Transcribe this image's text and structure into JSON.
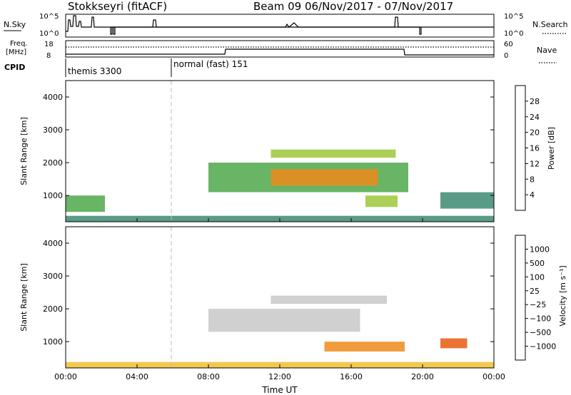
{
  "header": {
    "station": "Stokkseyri (fitACF)",
    "beam_date": "Beam 09  06/Nov/2017 - 07/Nov/2017"
  },
  "noise_panel": {
    "left_label": "N.Sky",
    "right_label": "N.Search",
    "left_ticks": [
      "10^5",
      "10^0"
    ],
    "right_ticks": [
      "10^5",
      "10^0"
    ]
  },
  "freq_panel": {
    "left_label_top": "Freq.",
    "left_label_bottom": "[MHz]",
    "right_label": "Nave",
    "left_ticks": [
      "18",
      "8"
    ],
    "right_ticks": [
      "60",
      "0"
    ]
  },
  "cpid_panel": {
    "label": "CPID",
    "segments": [
      {
        "text": "themis 3300",
        "start_hour": 0
      },
      {
        "text": "normal (fast) 151",
        "start_hour": 6
      }
    ]
  },
  "x_axis": {
    "label": "Time UT",
    "ticks": [
      "00:00",
      "04:00",
      "08:00",
      "12:00",
      "16:00",
      "20:00",
      "00:00"
    ]
  },
  "colors": {
    "power_scale": [
      "#1f23e6",
      "#2f5bb2",
      "#3d8a72",
      "#4da84a",
      "#9cc73a",
      "#f0c21a",
      "#f08a1a",
      "#e04a1a",
      "#e31010"
    ],
    "velocity_scale": [
      "#1f3fd6",
      "#3a6fbf",
      "#2f8a5a",
      "#4fbf3a",
      "#c8c8c8",
      "#f0c030",
      "#f08a1a",
      "#e85a10",
      "#e01010"
    ],
    "ground_scatter": "#c4c4c4"
  },
  "chart_data": [
    {
      "type": "heatmap",
      "name": "power",
      "xlabel": "Time UT",
      "ylabel": "Slant Range [km]",
      "xlim": [
        0,
        24
      ],
      "ylim": [
        200,
        4500
      ],
      "yticks": [
        1000,
        2000,
        3000,
        4000
      ],
      "colorbar": {
        "label": "Power [dB]",
        "ticks": [
          4,
          8,
          12,
          16,
          20,
          24,
          28
        ],
        "range": [
          0,
          32
        ]
      },
      "regions": [
        {
          "t0": 0.0,
          "t1": 24.0,
          "r0": 200,
          "r1": 380,
          "value": 8
        },
        {
          "t0": 0.0,
          "t1": 2.2,
          "r0": 500,
          "r1": 1000,
          "value": 12
        },
        {
          "t0": 8.0,
          "t1": 19.2,
          "r0": 1100,
          "r1": 2000,
          "value": 12
        },
        {
          "t0": 11.5,
          "t1": 17.5,
          "r0": 1300,
          "r1": 1800,
          "value": 22
        },
        {
          "t0": 11.5,
          "t1": 18.5,
          "r0": 2150,
          "r1": 2400,
          "value": 16
        },
        {
          "t0": 21.0,
          "t1": 24.0,
          "r0": 600,
          "r1": 1100,
          "value": 10
        },
        {
          "t0": 16.8,
          "t1": 18.6,
          "r0": 650,
          "r1": 1000,
          "value": 16
        }
      ]
    },
    {
      "type": "heatmap",
      "name": "velocity",
      "xlabel": "Time UT",
      "ylabel": "Slant Range [km]",
      "xlim": [
        0,
        24
      ],
      "ylim": [
        200,
        4500
      ],
      "yticks": [
        1000,
        2000,
        3000,
        4000
      ],
      "colorbar": {
        "label": "Velocity [m s⁻¹]",
        "ticks": [
          "1000",
          "500",
          "100",
          "25",
          "−25",
          "−100",
          "−500",
          "−1000"
        ]
      },
      "regions": [
        {
          "t0": 8.0,
          "t1": 16.5,
          "r0": 1300,
          "r1": 2000,
          "value": 0
        },
        {
          "t0": 11.5,
          "t1": 18.0,
          "r0": 2150,
          "r1": 2400,
          "value": 0
        },
        {
          "t0": 14.5,
          "t1": 19.0,
          "r0": 700,
          "r1": 1000,
          "value": -300
        },
        {
          "t0": 21.0,
          "t1": 22.5,
          "r0": 800,
          "r1": 1100,
          "value": -800
        },
        {
          "t0": 0.0,
          "t1": 24.0,
          "r0": 200,
          "r1": 380,
          "value": -30
        }
      ]
    }
  ]
}
